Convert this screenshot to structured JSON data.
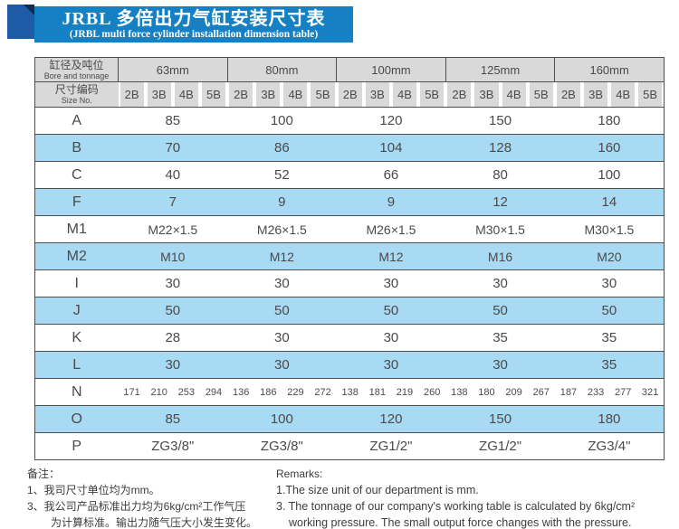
{
  "colors": {
    "banner": "#1580c4",
    "ribbon": "#1d5ba6",
    "fold": "#142a52",
    "header-bg": "#d9d9d9",
    "shade-bg": "#a9daf3",
    "border-dark": "#4f4f4f",
    "text": "#4a4a4a"
  },
  "banner": {
    "title_zh": "JRBL 多倍出力气缸安装尺寸表",
    "title_en": "(JRBL multi force cylinder installation dimension table)"
  },
  "table": {
    "corner": {
      "row1_zh": "缸径及吨位",
      "row1_en": "Bore and tonnage",
      "row2_zh": "尺寸编码",
      "row2_en": "Size No."
    },
    "groups": [
      "63mm",
      "80mm",
      "100mm",
      "125mm",
      "160mm"
    ],
    "sub_headers": [
      "2B",
      "3B",
      "4B",
      "5B"
    ],
    "rows": [
      {
        "label": "A",
        "type": "merged",
        "shade": false,
        "values": [
          "85",
          "100",
          "120",
          "150",
          "180"
        ]
      },
      {
        "label": "B",
        "type": "merged",
        "shade": true,
        "values": [
          "70",
          "86",
          "104",
          "128",
          "160"
        ]
      },
      {
        "label": "C",
        "type": "merged",
        "shade": false,
        "values": [
          "40",
          "52",
          "66",
          "80",
          "100"
        ]
      },
      {
        "label": "F",
        "type": "merged",
        "shade": true,
        "values": [
          "7",
          "9",
          "9",
          "12",
          "14"
        ]
      },
      {
        "label": "M1",
        "type": "merged",
        "shade": false,
        "metric": true,
        "values": [
          "M22×1.5",
          "M26×1.5",
          "M26×1.5",
          "M30×1.5",
          "M30×1.5"
        ]
      },
      {
        "label": "M2",
        "type": "merged",
        "shade": true,
        "metric": true,
        "values": [
          "M10",
          "M12",
          "M12",
          "M16",
          "M20"
        ]
      },
      {
        "label": "I",
        "type": "merged",
        "shade": false,
        "values": [
          "30",
          "30",
          "30",
          "30",
          "30"
        ]
      },
      {
        "label": "J",
        "type": "merged",
        "shade": true,
        "values": [
          "50",
          "50",
          "50",
          "50",
          "50"
        ]
      },
      {
        "label": "K",
        "type": "merged",
        "shade": false,
        "values": [
          "28",
          "30",
          "30",
          "35",
          "35"
        ]
      },
      {
        "label": "L",
        "type": "merged",
        "shade": true,
        "values": [
          "30",
          "30",
          "30",
          "30",
          "35"
        ]
      },
      {
        "label": "N",
        "type": "per-sub",
        "shade": false,
        "values": [
          [
            "171",
            "210",
            "253",
            "294"
          ],
          [
            "136",
            "186",
            "229",
            "272"
          ],
          [
            "138",
            "181",
            "219",
            "260"
          ],
          [
            "138",
            "180",
            "209",
            "267"
          ],
          [
            "187",
            "233",
            "277",
            "321"
          ]
        ]
      },
      {
        "label": "O",
        "type": "merged",
        "shade": true,
        "values": [
          "85",
          "100",
          "120",
          "150",
          "180"
        ]
      },
      {
        "label": "P",
        "type": "merged",
        "shade": false,
        "values": [
          "ZG3/8\"",
          "ZG3/8\"",
          "ZG1/2\"",
          "ZG1/2\"",
          "ZG3/4\""
        ]
      }
    ]
  },
  "notes": {
    "zh": {
      "title": "备注：",
      "lines": [
        {
          "text": "1、我司尺寸单位均为mm。",
          "cont": false
        },
        {
          "text": "3、我公司产品标准出力均为6kg/cm²工作气压",
          "cont": false
        },
        {
          "text": "为计算标准。输出力随气压大小发生变化。",
          "cont": true
        }
      ]
    },
    "en": {
      "title": "Remarks:",
      "lines": [
        {
          "text": "1.The size unit of our department is mm.",
          "cont": false
        },
        {
          "text": "3. The tonnage of our company's working table is calculated by 6kg/cm²",
          "cont": false
        },
        {
          "text": "working pressure. The small output force changes with the pressure.",
          "cont": true
        }
      ]
    }
  }
}
